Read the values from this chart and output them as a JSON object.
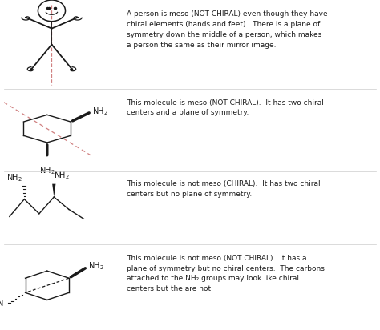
{
  "bg_color": "#ffffff",
  "text_color": "#1a1a1a",
  "line_color": "#1a1a1a",
  "dashed_color": "#d08080",
  "fig_width": 4.74,
  "fig_height": 4.12,
  "dpi": 100,
  "rows": [
    {
      "text": "A person is meso (NOT CHIRAL) even though they have\nchiral elements (hands and feet).  There is a plane of\nsymmetry down the middle of a person, which makes\na person the same as their mirror image.",
      "font_size": 6.5
    },
    {
      "text": "This molecule is meso (NOT CHIRAL).  It has two chiral\ncenters and a plane of symmetry.",
      "font_size": 6.5
    },
    {
      "text": "This molecule is not meso (CHIRAL).  It has two chiral\ncenters but no plane of symmetry.",
      "font_size": 6.5
    },
    {
      "text": "This molecule is not meso (NOT CHIRAL).  It has a\nplane of symmetry but no chiral centers.  The carbons\nattached to the NH₂ groups may look like chiral\ncenters but the are not.",
      "font_size": 6.5
    }
  ]
}
